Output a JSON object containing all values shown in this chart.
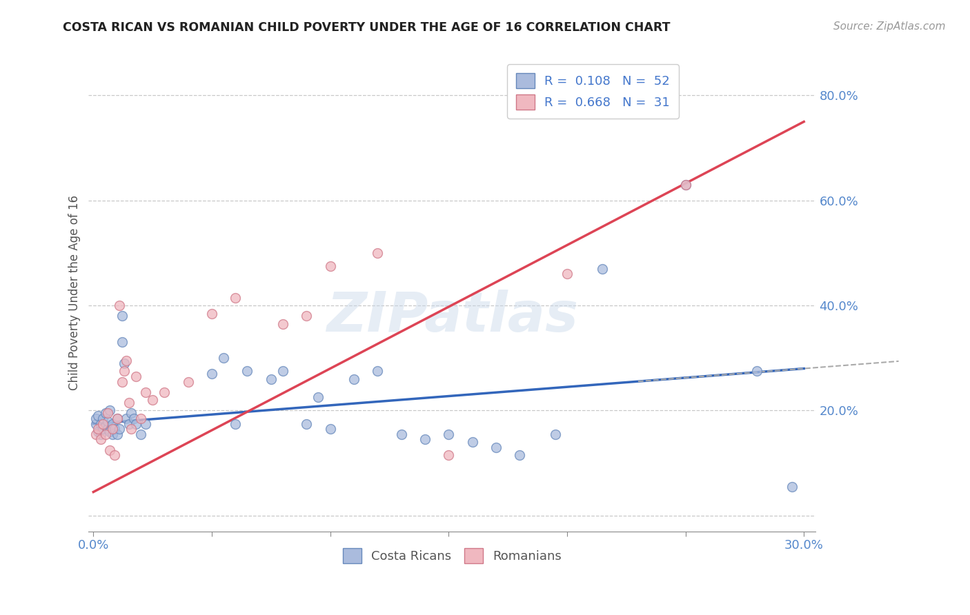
{
  "title": "COSTA RICAN VS ROMANIAN CHILD POVERTY UNDER THE AGE OF 16 CORRELATION CHART",
  "source_text": "Source: ZipAtlas.com",
  "ylabel": "Child Poverty Under the Age of 16",
  "xlim": [
    -0.002,
    0.305
  ],
  "ylim": [
    -0.03,
    0.88
  ],
  "ytick_values": [
    0.0,
    0.2,
    0.4,
    0.6,
    0.8
  ],
  "xtick_values": [
    0.0,
    0.05,
    0.1,
    0.15,
    0.2,
    0.25,
    0.3
  ],
  "watermark_text": "ZIPatlas",
  "blue_intercept": 0.175,
  "blue_slope": 0.35,
  "pink_intercept": 0.045,
  "pink_slope": 2.35,
  "blue_scatter_x": [
    0.001,
    0.001,
    0.002,
    0.002,
    0.003,
    0.003,
    0.004,
    0.004,
    0.005,
    0.005,
    0.006,
    0.006,
    0.007,
    0.007,
    0.008,
    0.008,
    0.009,
    0.01,
    0.01,
    0.011,
    0.012,
    0.012,
    0.013,
    0.014,
    0.015,
    0.016,
    0.017,
    0.018,
    0.02,
    0.022,
    0.05,
    0.055,
    0.06,
    0.065,
    0.075,
    0.08,
    0.09,
    0.095,
    0.1,
    0.11,
    0.12,
    0.13,
    0.14,
    0.15,
    0.16,
    0.17,
    0.18,
    0.195,
    0.215,
    0.25,
    0.28,
    0.295
  ],
  "blue_scatter_y": [
    0.175,
    0.185,
    0.16,
    0.19,
    0.155,
    0.175,
    0.165,
    0.185,
    0.17,
    0.195,
    0.165,
    0.18,
    0.16,
    0.2,
    0.155,
    0.175,
    0.165,
    0.155,
    0.185,
    0.165,
    0.38,
    0.33,
    0.29,
    0.185,
    0.175,
    0.195,
    0.185,
    0.175,
    0.155,
    0.175,
    0.27,
    0.3,
    0.175,
    0.275,
    0.26,
    0.275,
    0.175,
    0.225,
    0.165,
    0.26,
    0.275,
    0.155,
    0.145,
    0.155,
    0.14,
    0.13,
    0.115,
    0.155,
    0.47,
    0.63,
    0.275,
    0.055
  ],
  "pink_scatter_x": [
    0.001,
    0.002,
    0.003,
    0.004,
    0.005,
    0.006,
    0.007,
    0.008,
    0.009,
    0.01,
    0.011,
    0.012,
    0.013,
    0.014,
    0.015,
    0.016,
    0.018,
    0.02,
    0.022,
    0.025,
    0.03,
    0.04,
    0.05,
    0.06,
    0.08,
    0.09,
    0.1,
    0.12,
    0.15,
    0.2,
    0.25
  ],
  "pink_scatter_y": [
    0.155,
    0.165,
    0.145,
    0.175,
    0.155,
    0.195,
    0.125,
    0.165,
    0.115,
    0.185,
    0.4,
    0.255,
    0.275,
    0.295,
    0.215,
    0.165,
    0.265,
    0.185,
    0.235,
    0.22,
    0.235,
    0.255,
    0.385,
    0.415,
    0.365,
    0.38,
    0.475,
    0.5,
    0.115,
    0.46,
    0.63
  ],
  "background_color": "#ffffff",
  "scatter_size": 100,
  "blue_fill_color": "#aabbdd",
  "blue_edge_color": "#6688bb",
  "pink_fill_color": "#f0b8c0",
  "pink_edge_color": "#d07888",
  "trend_blue_color": "#3366bb",
  "trend_pink_color": "#dd4455",
  "grid_color": "#c8c8c8",
  "axis_color": "#888888",
  "tick_label_color": "#5588cc",
  "title_color": "#222222",
  "source_color": "#999999",
  "ylabel_color": "#555555",
  "legend_text_color": "#4477cc",
  "bottom_legend_text_color": "#555555"
}
